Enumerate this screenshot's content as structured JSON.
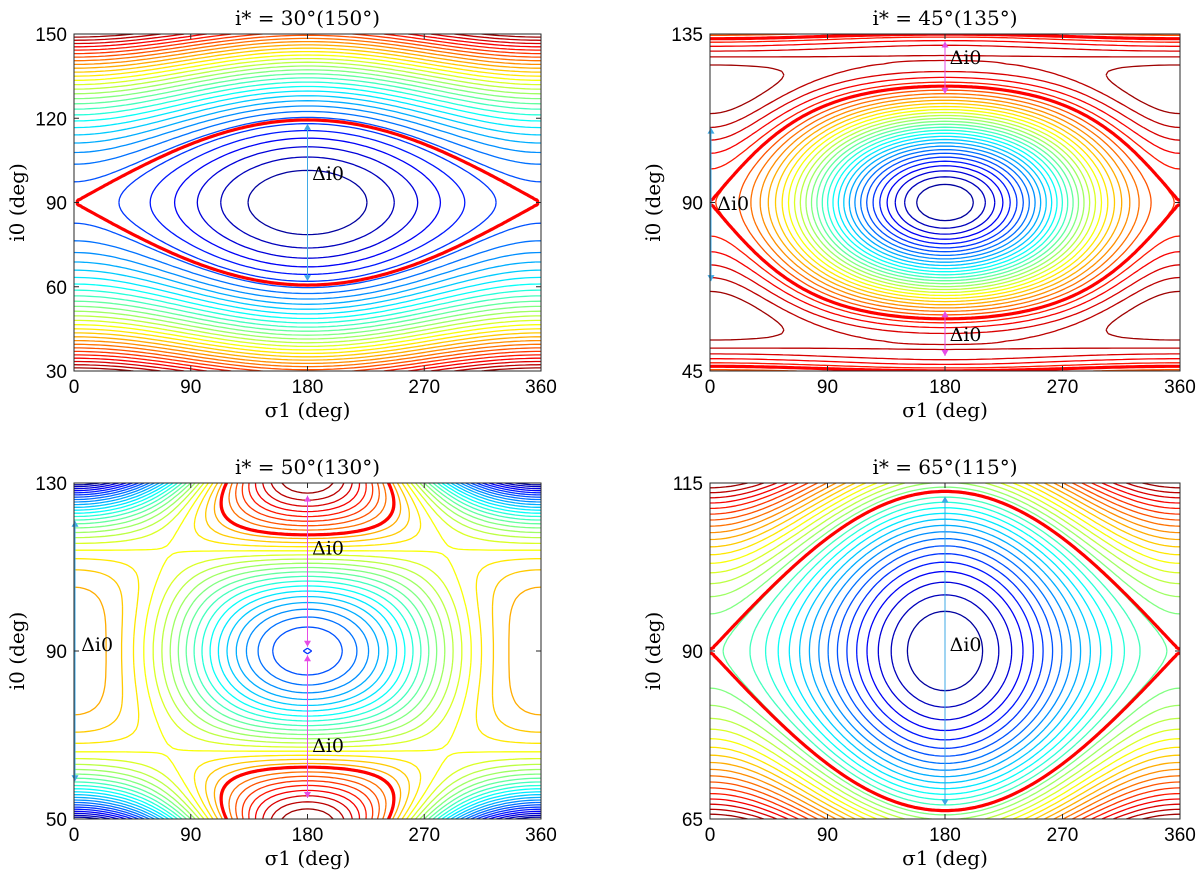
{
  "chart_data": [
    {
      "type": "contour",
      "title": "i* = 30°(150°)",
      "xlabel": "σ1 (deg)",
      "ylabel": "i0 (deg)",
      "xlim": [
        0,
        360
      ],
      "ylim": [
        30,
        150
      ],
      "xticks": [
        "0",
        "90",
        "180",
        "270",
        "360"
      ],
      "yticks": [
        "30",
        "60",
        "90",
        "120",
        "150"
      ],
      "grid": false,
      "separatrix": {
        "color": "#ff0000",
        "x_points": [
          0,
          180,
          360
        ],
        "i0_values": [
          90,
          62,
          118
        ]
      },
      "arrows": [
        {
          "x": 180,
          "from": 62,
          "to": 118,
          "color": "#3fa9e6",
          "label": "Δi0"
        }
      ],
      "annotations": [
        {
          "text": "Δi0",
          "x": 182,
          "y": 98
        }
      ],
      "colormap": "jet"
    },
    {
      "type": "contour",
      "title": "i* = 45°(135°)",
      "xlabel": "σ1 (deg)",
      "ylabel": "i0 (deg)",
      "xlim": [
        0,
        360
      ],
      "ylim": [
        45,
        135
      ],
      "xticks": [
        "0",
        "90",
        "180",
        "270",
        "360"
      ],
      "yticks": [
        "45",
        "90",
        "135"
      ],
      "grid": false,
      "separatrix": {
        "color": "#ff0000",
        "upper_lobe": [
          119,
          133
        ],
        "middle_lobe": [
          69,
          110
        ],
        "lower_lobe": [
          49,
          61
        ]
      },
      "arrows": [
        {
          "x": 180,
          "from": 119,
          "to": 133,
          "color": "#e64ce6",
          "label": "Δi0"
        },
        {
          "x": 0,
          "from": 69,
          "to": 110,
          "color": "#3fa9e6",
          "label": "Δi0"
        },
        {
          "x": 180,
          "from": 49,
          "to": 61,
          "color": "#e64ce6",
          "label": "Δi0"
        }
      ],
      "annotations": [
        {
          "text": "Δi0",
          "x": 182,
          "y": 127
        },
        {
          "text": "Δi0",
          "x": 4,
          "y": 88
        },
        {
          "text": "Δi0",
          "x": 182,
          "y": 53
        }
      ],
      "colormap": "jet"
    },
    {
      "type": "contour",
      "title": "i* = 50°(130°)",
      "xlabel": "σ1 (deg)",
      "ylabel": "i0 (deg)",
      "xlim": [
        0,
        360
      ],
      "ylim": [
        50,
        130
      ],
      "xticks": [
        "0",
        "90",
        "180",
        "270",
        "360"
      ],
      "yticks": [
        "50",
        "90",
        "130"
      ],
      "grid": false,
      "separatrix": {
        "color": "#ff0000",
        "x_points": [
          0,
          180,
          360
        ],
        "i0_values": [
          90,
          128,
          54
        ]
      },
      "arrows": [
        {
          "x": 180,
          "from": 91,
          "to": 127,
          "color": "#e64ce6",
          "label": "Δi0"
        },
        {
          "x": 180,
          "from": 55,
          "to": 89,
          "color": "#e64ce6",
          "label": "Δi0"
        },
        {
          "x": 0,
          "from": 59,
          "to": 121,
          "color": "#3fa9e6",
          "label": "Δi0"
        }
      ],
      "annotations": [
        {
          "text": "Δi0",
          "x": 182,
          "y": 113
        },
        {
          "text": "Δi0",
          "x": 182,
          "y": 66
        },
        {
          "text": "Δi0",
          "x": 4,
          "y": 90
        }
      ],
      "colormap": "jet"
    },
    {
      "type": "contour",
      "title": "i* = 65°(115°)",
      "xlabel": "σ1 (deg)",
      "ylabel": "i0 (deg)",
      "xlim": [
        0,
        360
      ],
      "ylim": [
        65,
        115
      ],
      "xticks": [
        "0",
        "90",
        "180",
        "270",
        "360"
      ],
      "yticks": [
        "65",
        "90",
        "115"
      ],
      "grid": false,
      "separatrix": {
        "color": "#ff0000",
        "x_points": [
          0,
          180,
          360
        ],
        "i0_values": [
          90,
          67,
          113
        ]
      },
      "arrows": [
        {
          "x": 180,
          "from": 67,
          "to": 113,
          "color": "#3fa9e6",
          "label": "Δi0"
        }
      ],
      "annotations": [
        {
          "text": "Δi0",
          "x": 182,
          "y": 90
        }
      ],
      "colormap": "jet"
    }
  ]
}
